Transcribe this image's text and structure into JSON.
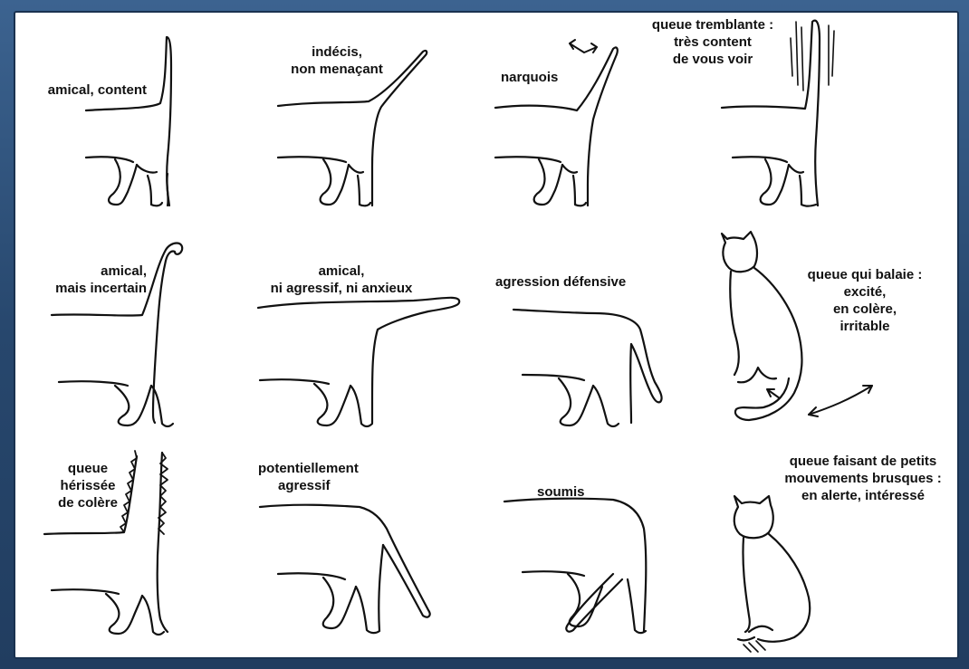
{
  "cells": [
    {
      "lines": [
        "amical, content"
      ]
    },
    {
      "lines": [
        "indécis,",
        "non menaçant"
      ]
    },
    {
      "lines": [
        "narquois"
      ]
    },
    {
      "lines": [
        "queue tremblante :",
        "très content",
        "de vous voir"
      ]
    },
    {
      "lines": [
        "amical,",
        "mais incertain"
      ]
    },
    {
      "lines": [
        "amical,",
        "ni agressif, ni anxieux"
      ]
    },
    {
      "lines": [
        "agression défensive"
      ]
    },
    {
      "lines": [
        "queue qui balaie :",
        "excité,",
        "en colère,",
        "irritable"
      ]
    },
    {
      "lines": [
        "queue",
        "hérissée",
        "de colère"
      ]
    },
    {
      "lines": [
        "potentiellement",
        "agressif"
      ]
    },
    {
      "lines": [
        "soumis"
      ]
    },
    {
      "lines": [
        "queue faisant de petits",
        "mouvements brusques :",
        "en alerte, intéressé"
      ]
    }
  ]
}
